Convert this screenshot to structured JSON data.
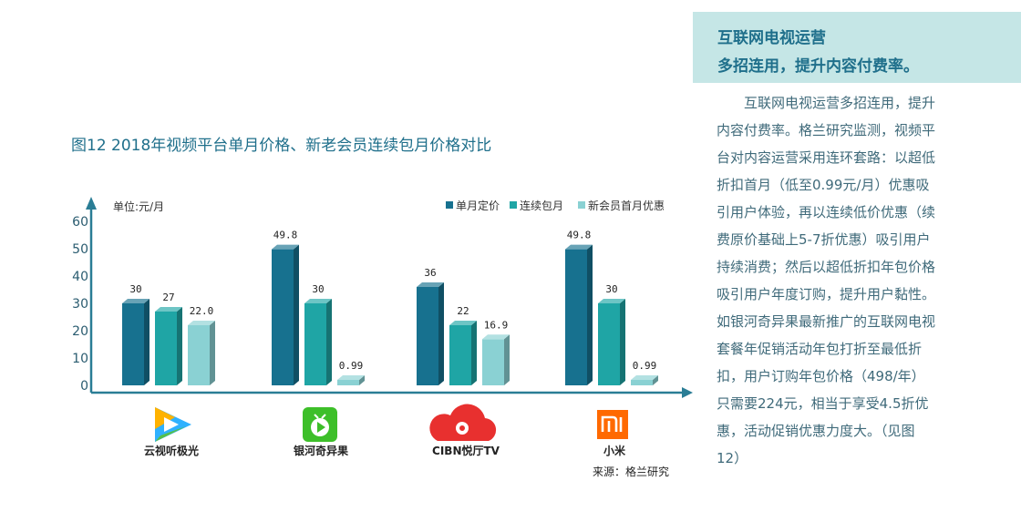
{
  "chart_data": {
    "type": "bar",
    "title": "图12  2018年视频平台单月价格、新老会员连续包月价格对比",
    "unit_label": "单位:元/月",
    "ylim": [
      0,
      60
    ],
    "yticks": [
      "0",
      "10",
      "20",
      "30",
      "40",
      "50",
      "60"
    ],
    "categories": [
      "云视听极光",
      "银河奇异果",
      "CIBN悦厅TV",
      "小米"
    ],
    "series": [
      {
        "name": "单月定价",
        "color": "#17718f",
        "values": [
          30,
          49.8,
          36,
          49.8
        ],
        "labels": [
          "30",
          "49.8",
          "36",
          "49.8"
        ]
      },
      {
        "name": "连续包月",
        "color": "#1fa5a5",
        "values": [
          27,
          30,
          22,
          30
        ],
        "labels": [
          "27",
          "30",
          "22",
          "30"
        ]
      },
      {
        "name": "新会员首月优惠",
        "color": "#8ad1d3",
        "values": [
          22.0,
          0.99,
          16.9,
          0.99
        ],
        "labels": [
          "22.0",
          "0.99",
          "16.9",
          "0.99"
        ]
      }
    ],
    "legend_position": "top-right",
    "source": "来源：格兰研究",
    "icons": [
      "tencent-video-icon",
      "iqiyi-tv-icon",
      "cibn-cloud-icon",
      "mi-logo-icon"
    ]
  },
  "sidebar": {
    "heading_line1": "互联网电视运营",
    "heading_line2": "多招连用，提升内容付费率。",
    "paragraph": "互联网电视运营多招连用，提升内容付费率。格兰研究监测，视频平台对内容运营采用连环套路：以超低折扣首月（低至0.99元/月）优惠吸引用户体验，再以连续低价优惠（续费原价基础上5-7折优惠）吸引用户持续消费；然后以超低折扣年包价格吸引用户年度订购，提升用户黏性。如银河奇异果最新推广的互联网电视套餐年促销活动年包打折至最低折扣，用户订购年包价格（498/年）只需要224元，相当于享受4.5折优惠，活动促销优惠力度大。（见图12）"
  }
}
